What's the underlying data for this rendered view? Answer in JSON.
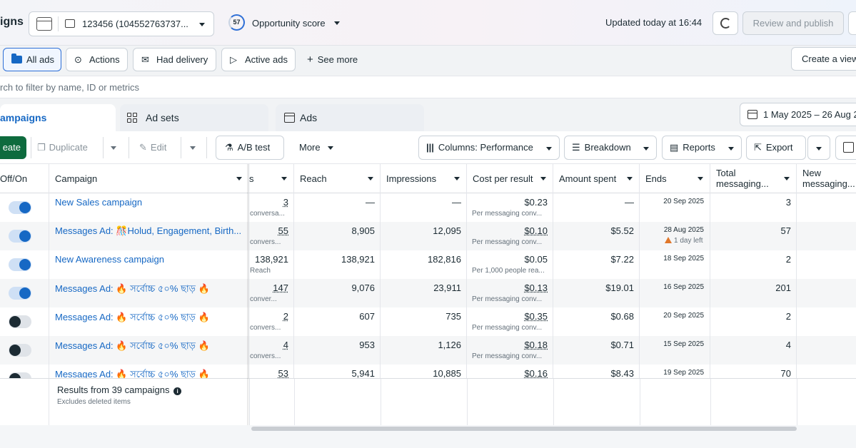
{
  "header": {
    "app_title": "igns",
    "account": "123456 (104552763737...",
    "opportunity_score": "57",
    "opportunity_label": "Opportunity score",
    "updated": "Updated today at 16:44",
    "review_button": "Review and publish"
  },
  "filters": {
    "chips": [
      "All ads",
      "Actions",
      "Had delivery",
      "Active ads"
    ],
    "see_more": "See more",
    "create_view": "Create a view"
  },
  "search": {
    "placeholder": "rch to filter by name, ID or metrics"
  },
  "level_tabs": [
    "ampaigns",
    "Ad sets",
    "Ads"
  ],
  "date_range": "1 May 2025 – 26 Aug 2",
  "toolbar": {
    "create": "eate",
    "duplicate": "Duplicate",
    "edit": "Edit",
    "ab_test": "A/B test",
    "more": "More",
    "columns": "Columns: Performance",
    "breakdown": "Breakdown",
    "reports": "Reports",
    "export": "Export"
  },
  "table": {
    "headers": {
      "offon": "Off/On",
      "campaign": "Campaign",
      "results": "s",
      "reach": "Reach",
      "impressions": "Impressions",
      "cpr": "Cost per result",
      "spent": "Amount spent",
      "ends": "Ends",
      "total_msg_1": "Total",
      "total_msg_2": "messaging...",
      "new_msg_1": "New",
      "new_msg_2": "messaging..."
    },
    "rows": [
      {
        "on": true,
        "name": "New Sales campaign",
        "results": "3",
        "results_sub": "conversa...",
        "reach": "—",
        "impressions": "—",
        "cpr": "$0.23",
        "cpr_sub": "Per messaging conv...",
        "spent": "—",
        "ends": "20 Sep 2025",
        "ends_warn": "",
        "total": "3"
      },
      {
        "on": true,
        "name": "Messages Ad: 🎊Holud, Engagement, Birth...",
        "results": "55",
        "results_sub": "convers...",
        "reach": "8,905",
        "impressions": "12,095",
        "cpr": "$0.10",
        "cpr_sub": "Per messaging conv...",
        "spent": "$5.52",
        "ends": "28 Aug 2025",
        "ends_warn": "1 day left",
        "total": "57"
      },
      {
        "on": true,
        "name": "New Awareness campaign",
        "results": "138,921",
        "results_sub": "Reach",
        "reach": "138,921",
        "impressions": "182,816",
        "cpr": "$0.05",
        "cpr_sub": "Per 1,000 people rea...",
        "spent": "$7.22",
        "ends": "18 Sep 2025",
        "ends_warn": "",
        "total": "2"
      },
      {
        "on": true,
        "name": "Messages Ad: 🔥 সর্বোচ্চ ৫০% ছাড় 🔥",
        "results": "147",
        "results_sub": "conver...",
        "reach": "9,076",
        "impressions": "23,911",
        "cpr": "$0.13",
        "cpr_sub": "Per messaging conv...",
        "spent": "$19.01",
        "ends": "16 Sep 2025",
        "ends_warn": "",
        "total": "201"
      },
      {
        "on": false,
        "name": "Messages Ad: 🔥 সর্বোচ্চ ৫০% ছাড় 🔥",
        "results": "2",
        "results_sub": "convers...",
        "reach": "607",
        "impressions": "735",
        "cpr": "$0.35",
        "cpr_sub": "Per messaging conv...",
        "spent": "$0.68",
        "ends": "20 Sep 2025",
        "ends_warn": "",
        "total": "2"
      },
      {
        "on": false,
        "name": "Messages Ad: 🔥 সর্বোচ্চ ৫০% ছাড় 🔥",
        "results": "4",
        "results_sub": "convers...",
        "reach": "953",
        "impressions": "1,126",
        "cpr": "$0.18",
        "cpr_sub": "Per messaging conv...",
        "spent": "$0.71",
        "ends": "15 Sep 2025",
        "ends_warn": "",
        "total": "4"
      },
      {
        "on": false,
        "name": "Messages Ad: 🔥 সর্বোচ্চ ৫০% ছাড় 🔥",
        "results": "53",
        "results_sub": "",
        "reach": "5,941",
        "impressions": "10,885",
        "cpr": "$0.16",
        "cpr_sub": "",
        "spent": "$8.43",
        "ends": "19 Sep 2025",
        "ends_warn": "",
        "total": "70"
      }
    ],
    "footer_title": "Results from 39 campaigns",
    "footer_sub": "Excludes deleted items"
  },
  "colors": {
    "accent": "#1668c4",
    "create_green": "#0e6b3e",
    "warning": "#e0772a"
  }
}
